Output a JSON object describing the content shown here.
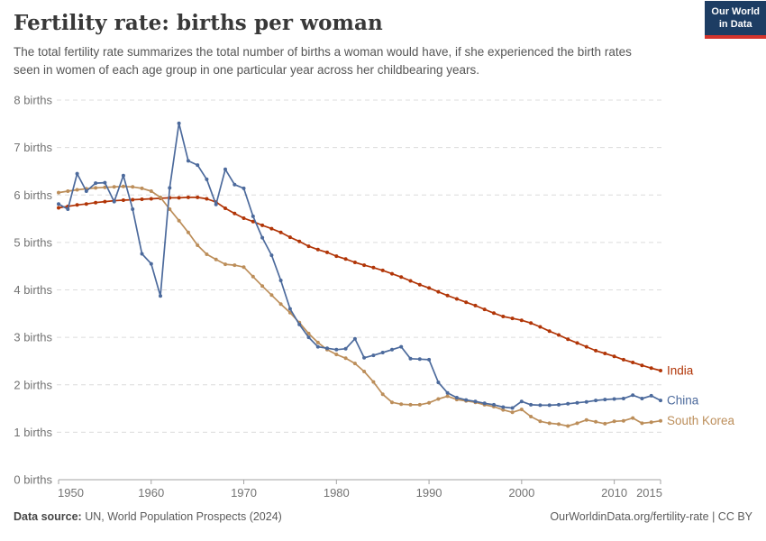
{
  "header": {
    "title": "Fertility rate: births per woman",
    "subtitle": "The total fertility rate summarizes the total number of births a woman would have, if she experienced the birth rates seen in women of each age group in one particular year across her childbearing years.",
    "logo": {
      "line1": "Our World",
      "line2": "in Data"
    }
  },
  "chart_data": {
    "type": "line",
    "title": "Fertility rate: births per woman",
    "xlabel": "",
    "ylabel": "births per woman",
    "xlim": [
      1950,
      2015
    ],
    "ylim": [
      0,
      8
    ],
    "x_ticks": [
      1950,
      1960,
      1970,
      1980,
      1990,
      2000,
      2010,
      2015
    ],
    "y_ticks": [
      0,
      1,
      2,
      3,
      4,
      5,
      6,
      7,
      8
    ],
    "y_tick_suffix": " births",
    "grid": "horizontal-dashed",
    "legend_position": "line-end-labels",
    "years": [
      1950,
      1951,
      1952,
      1953,
      1954,
      1955,
      1956,
      1957,
      1958,
      1959,
      1960,
      1961,
      1962,
      1963,
      1964,
      1965,
      1966,
      1967,
      1968,
      1969,
      1970,
      1971,
      1972,
      1973,
      1974,
      1975,
      1976,
      1977,
      1978,
      1979,
      1980,
      1981,
      1982,
      1983,
      1984,
      1985,
      1986,
      1987,
      1988,
      1989,
      1990,
      1991,
      1992,
      1993,
      1994,
      1995,
      1996,
      1997,
      1998,
      1999,
      2000,
      2001,
      2002,
      2003,
      2004,
      2005,
      2006,
      2007,
      2008,
      2009,
      2010,
      2011,
      2012,
      2013,
      2014,
      2015
    ],
    "series": [
      {
        "name": "India",
        "color": "#b13507",
        "values": [
          5.73,
          5.76,
          5.79,
          5.81,
          5.84,
          5.86,
          5.88,
          5.89,
          5.9,
          5.91,
          5.92,
          5.93,
          5.94,
          5.94,
          5.95,
          5.95,
          5.92,
          5.85,
          5.72,
          5.61,
          5.51,
          5.44,
          5.36,
          5.29,
          5.21,
          5.11,
          5.02,
          4.92,
          4.85,
          4.79,
          4.71,
          4.65,
          4.58,
          4.52,
          4.47,
          4.41,
          4.34,
          4.27,
          4.19,
          4.11,
          4.04,
          3.96,
          3.88,
          3.81,
          3.74,
          3.67,
          3.59,
          3.51,
          3.44,
          3.4,
          3.36,
          3.3,
          3.22,
          3.13,
          3.05,
          2.96,
          2.88,
          2.8,
          2.72,
          2.66,
          2.6,
          2.53,
          2.47,
          2.41,
          2.35,
          2.3
        ]
      },
      {
        "name": "China",
        "color": "#4c6a9c",
        "values": [
          5.81,
          5.7,
          6.45,
          6.08,
          6.25,
          6.26,
          5.86,
          6.41,
          5.7,
          4.76,
          4.55,
          3.87,
          6.15,
          7.51,
          6.72,
          6.63,
          6.33,
          5.8,
          6.54,
          6.22,
          6.14,
          5.55,
          5.1,
          4.73,
          4.2,
          3.6,
          3.27,
          3.0,
          2.8,
          2.77,
          2.74,
          2.76,
          2.97,
          2.57,
          2.62,
          2.68,
          2.74,
          2.8,
          2.55,
          2.54,
          2.53,
          2.05,
          1.83,
          1.73,
          1.68,
          1.65,
          1.61,
          1.58,
          1.53,
          1.51,
          1.65,
          1.58,
          1.57,
          1.57,
          1.58,
          1.6,
          1.62,
          1.64,
          1.67,
          1.69,
          1.7,
          1.71,
          1.78,
          1.71,
          1.77,
          1.67
        ]
      },
      {
        "name": "South Korea",
        "color": "#bc8e5a",
        "values": [
          6.05,
          6.08,
          6.11,
          6.13,
          6.15,
          6.16,
          6.17,
          6.18,
          6.17,
          6.14,
          6.08,
          5.95,
          5.7,
          5.46,
          5.21,
          4.94,
          4.75,
          4.64,
          4.54,
          4.52,
          4.48,
          4.28,
          4.08,
          3.89,
          3.7,
          3.52,
          3.31,
          3.08,
          2.89,
          2.74,
          2.64,
          2.56,
          2.45,
          2.28,
          2.06,
          1.8,
          1.63,
          1.59,
          1.58,
          1.58,
          1.62,
          1.7,
          1.76,
          1.69,
          1.66,
          1.63,
          1.58,
          1.54,
          1.47,
          1.42,
          1.48,
          1.33,
          1.23,
          1.19,
          1.17,
          1.13,
          1.19,
          1.26,
          1.22,
          1.18,
          1.23,
          1.24,
          1.3,
          1.19,
          1.21,
          1.24
        ]
      }
    ]
  },
  "footer": {
    "source_label": "Data source:",
    "source_text": " UN, World Population Prospects (2024)",
    "credit": "OurWorldinData.org/fertility-rate | CC BY"
  },
  "colors": {
    "grid": "#dcdcdc",
    "axis": "#a3a3a3",
    "tick_label": "#737373",
    "logo_bg": "#1d3d63",
    "logo_accent": "#d4342c"
  }
}
